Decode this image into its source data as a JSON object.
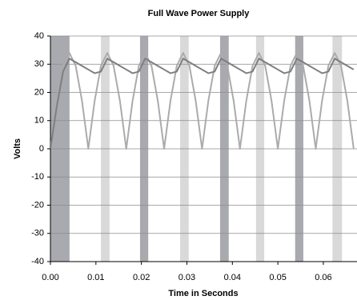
{
  "chart_data": {
    "type": "line",
    "title": "Full Wave Power Supply",
    "x_label": "Time in Seconds",
    "y_label": "Volts",
    "xlim": [
      0,
      0.0674
    ],
    "ylim": [
      -40,
      40
    ],
    "xticks": [
      {
        "value": 0,
        "label": "0.00"
      },
      {
        "value": 0.01,
        "label": "0.01"
      },
      {
        "value": 0.02,
        "label": "0.02"
      },
      {
        "value": 0.03,
        "label": "0.03"
      },
      {
        "value": 0.04,
        "label": "0.04"
      },
      {
        "value": 0.05,
        "label": "0.05"
      },
      {
        "value": 0.06,
        "label": "0.06"
      }
    ],
    "yticks": [
      -40,
      -30,
      -20,
      -10,
      0,
      10,
      20,
      30,
      40
    ],
    "grid": true,
    "bands": [
      {
        "x": [
          0,
          0.0042
        ],
        "color": "#a9aab0"
      },
      {
        "x": [
          0.0111,
          0.013
        ],
        "color": "#d9d9d9"
      },
      {
        "x": [
          0.0197,
          0.0215
        ],
        "color": "#a9aab0"
      },
      {
        "x": [
          0.0285,
          0.0304
        ],
        "color": "#d9d9d9"
      },
      {
        "x": [
          0.0373,
          0.0392
        ],
        "color": "#a9aab0"
      },
      {
        "x": [
          0.0452,
          0.047
        ],
        "color": "#d9d9d9"
      },
      {
        "x": [
          0.0538,
          0.0556
        ],
        "color": "#a9aab0"
      },
      {
        "x": [
          0.062,
          0.0641
        ],
        "color": "#d9d9d9"
      }
    ],
    "x": [
      0,
      0.00139,
      0.00278,
      0.00417,
      0.00556,
      0.00694,
      0.00833,
      0.00972,
      0.01111,
      0.0125,
      0.01389,
      0.01528,
      0.01667,
      0.01806,
      0.01944,
      0.02083,
      0.02222,
      0.02361,
      0.025,
      0.02639,
      0.02778,
      0.02917,
      0.03056,
      0.03194,
      0.03333,
      0.03472,
      0.03611,
      0.0375,
      0.03889,
      0.04028,
      0.04167,
      0.04306,
      0.04444,
      0.04583,
      0.04722,
      0.04861,
      0.05,
      0.05139,
      0.05278,
      0.05417,
      0.05556,
      0.05694,
      0.05833,
      0.05972,
      0.06111,
      0.0625,
      0.06389,
      0.06528,
      0.06667
    ],
    "series": [
      {
        "color": "#ababab",
        "values": [
          0,
          17,
          29.4,
          34,
          29.4,
          17,
          0,
          17,
          29.4,
          34,
          29.4,
          17,
          0,
          17,
          29.4,
          34,
          29.4,
          17,
          0,
          17,
          29.4,
          34,
          29.4,
          17,
          0,
          17,
          29.4,
          34,
          29.4,
          17,
          0,
          17,
          29.4,
          34,
          29.4,
          17,
          0,
          17,
          29.4,
          34,
          29.4,
          17,
          0,
          17,
          29.4,
          34,
          29.4,
          17,
          0
        ]
      },
      {
        "color": "#7f7f7f",
        "values": [
          0,
          15,
          27.4,
          32,
          30.7,
          29.4,
          28.1,
          26.8,
          27.4,
          32,
          30.7,
          29.4,
          28.1,
          26.8,
          27.4,
          32,
          30.7,
          29.4,
          28.1,
          26.8,
          27.4,
          32,
          30.7,
          29.4,
          28.1,
          26.8,
          27.4,
          32,
          30.7,
          29.4,
          28.1,
          26.8,
          27.4,
          32,
          30.7,
          29.4,
          28.1,
          26.8,
          27.4,
          32,
          30.7,
          29.4,
          28.1,
          26.8,
          27.4,
          32,
          30.7,
          29.4,
          28.1
        ]
      }
    ]
  }
}
